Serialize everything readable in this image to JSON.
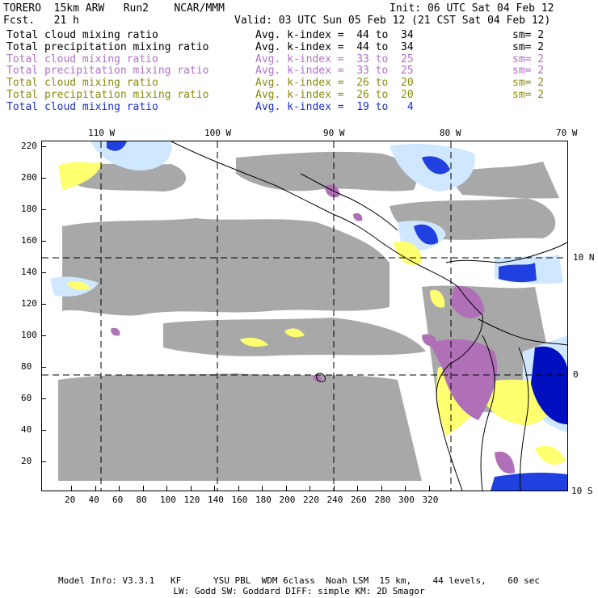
{
  "header": {
    "left1": "TORERO  15km ARW   Run2    NCAR/MMM",
    "left2": "Fcst.   21 h",
    "init": "Init: 06 UTC Sat 04 Feb 12",
    "valid": "Valid: 03 UTC Sun 05 Feb 12 (21 CST Sat 04 Feb 12)"
  },
  "legend": [
    {
      "field": "Total cloud mixing ratio",
      "range": "Avg. k-index =  44 to  34",
      "sm": "sm= 2",
      "color": "#000000"
    },
    {
      "field": "Total precipitation mixing ratio",
      "range": "Avg. k-index =  44 to  34",
      "sm": "sm= 2",
      "color": "#000000"
    },
    {
      "field": "Total cloud mixing ratio",
      "range": "Avg. k-index =  33 to  25",
      "sm": "sm= 2",
      "color": "#b070c8"
    },
    {
      "field": "Total precipitation mixing ratio",
      "range": "Avg. k-index =  33 to  25",
      "sm": "sm= 2",
      "color": "#b070c8"
    },
    {
      "field": "Total cloud mixing ratio",
      "range": "Avg. k-index =  26 to  20",
      "sm": "sm= 2",
      "color": "#8a8a10"
    },
    {
      "field": "Total precipitation mixing ratio",
      "range": "Avg. k-index =  26 to  20",
      "sm": "sm= 2",
      "color": "#8a8a10"
    },
    {
      "field": "Total cloud mixing ratio",
      "range": "Avg. k-index =  19 to   4",
      "sm": "",
      "color": "#1830d0"
    }
  ],
  "map": {
    "lon_labels": [
      "110 W",
      "100 W",
      "90 W",
      "80 W",
      "70 W"
    ],
    "lat_labels": [
      "10 N",
      "0",
      "10 S"
    ],
    "y_ticks": [
      "220",
      "200",
      "180",
      "160",
      "140",
      "120",
      "100",
      "80",
      "60",
      "40",
      "20"
    ],
    "x_ticks": [
      "20",
      "40",
      "60",
      "80",
      "100",
      "120",
      "140",
      "160",
      "180",
      "200",
      "220",
      "240",
      "260",
      "280",
      "300",
      "320"
    ],
    "colors": {
      "gray_cloud": "#a8a8a8",
      "purple": "#b070b8",
      "yellow": "#ffff70",
      "light_blue": "#d0e8ff",
      "blue": "#2040e0",
      "dark_blue": "#0010c0"
    }
  },
  "footer": {
    "line1": "Model Info: V3.3.1   KF      YSU PBL  WDM 6class  Noah LSM  15 km,    44 levels,    60 sec",
    "line2": "LW: Godd SW: Goddard DIFF: simple KM: 2D Smagor"
  }
}
